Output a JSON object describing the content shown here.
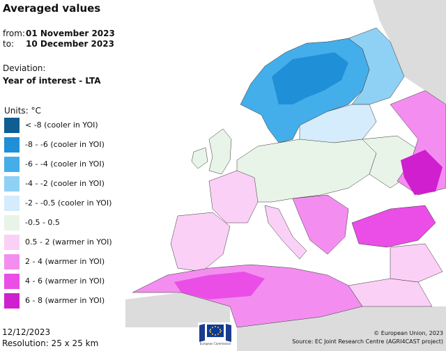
{
  "header": {
    "title": "Averaged values",
    "from_label": "from:",
    "from_value": "01 November 2023",
    "to_label": "to:",
    "to_value": "10 December 2023",
    "deviation_label": "Deviation:",
    "deviation_value": "Year of interest - LTA",
    "units_label": "Units: °C"
  },
  "legend": [
    {
      "label": "< -8 (cooler in YOI)",
      "color": "#0e5e92"
    },
    {
      "label": "-8 - -6 (cooler in YOI)",
      "color": "#1f8fd8"
    },
    {
      "label": "-6 - -4 (cooler in YOI)",
      "color": "#44aeea"
    },
    {
      "label": "-4 - -2 (cooler in YOI)",
      "color": "#8fd0f5"
    },
    {
      "label": "-2 - -0.5 (cooler in YOI)",
      "color": "#d4ecfb"
    },
    {
      "label": "-0.5 - 0.5",
      "color": "#e9f4e8"
    },
    {
      "label": "0.5 - 2 (warmer in YOI)",
      "color": "#fbd0f6"
    },
    {
      "label": "2 - 4 (warmer in YOI)",
      "color": "#f38ef0"
    },
    {
      "label": "4 - 6 (warmer in YOI)",
      "color": "#ea4ee6"
    },
    {
      "label": "6 - 8 (warmer in YOI)",
      "color": "#d01fcf"
    }
  ],
  "footer": {
    "date": "12/12/2023",
    "resolution": "Resolution: 25 x 25 km",
    "copyright": "© European Union, 2023",
    "source": "Source: EC Joint Research Centre (AGRI4CAST project)",
    "logo_text": "European Commission"
  }
}
